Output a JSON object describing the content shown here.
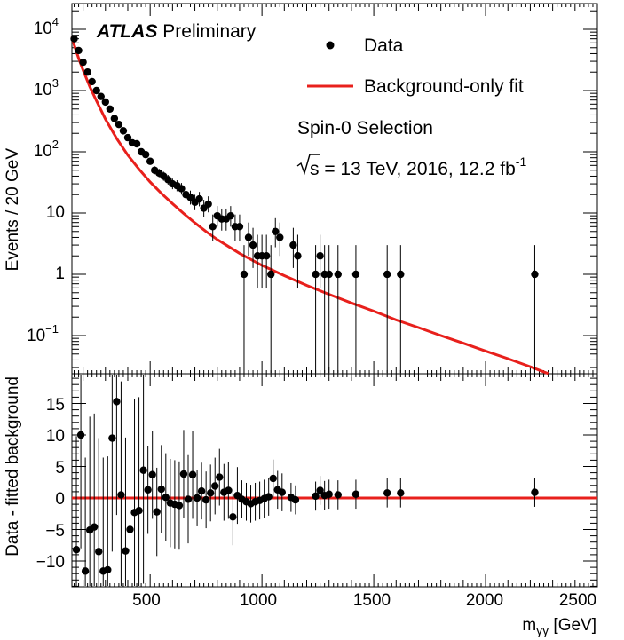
{
  "chart_data": {
    "type": "scatter",
    "experiment": "ATLAS",
    "status": "Preliminary",
    "selection": "Spin-0 Selection",
    "energy_sqrt": "s",
    "energy_text": " = 13 TeV, 2016, 12.2 fb",
    "lumi_exponent": "-1",
    "legend": {
      "data_label": "Data",
      "fit_label": "Background-only fit",
      "position": "top-right"
    },
    "x_axis": {
      "label_base": "m",
      "label_sub": "γγ",
      "label_unit": " [GeV]",
      "range": [
        150,
        2500
      ],
      "tick_labels": [
        "500",
        "1000",
        "1500",
        "2000",
        "2500"
      ]
    },
    "top_panel": {
      "ylabel": "Events / 20 GeV",
      "yscale": "log",
      "ylim": [
        0.02,
        20000
      ],
      "tick_labels": [
        {
          "base": "10",
          "exp": "4"
        },
        {
          "base": "10",
          "exp": "3"
        },
        {
          "base": "10",
          "exp": "2"
        },
        {
          "base": "10",
          "exp": ""
        },
        {
          "base": "1",
          "exp": ""
        },
        {
          "base": "10",
          "exp": "−1"
        }
      ],
      "fit_curve": {
        "x": [
          150,
          160,
          180,
          200,
          230,
          260,
          300,
          350,
          400,
          450,
          500,
          550,
          600,
          650,
          700,
          750,
          800,
          900,
          1000,
          1100,
          1200,
          1300,
          1400,
          1500,
          1600,
          1700,
          1800,
          1900,
          2000,
          2100,
          2200,
          2280
        ],
        "y": [
          7600,
          5600,
          3350,
          2150,
          1150,
          680,
          340,
          165,
          88,
          52,
          32,
          21,
          14.2,
          9.8,
          6.9,
          5.0,
          3.7,
          2.2,
          1.4,
          0.95,
          0.66,
          0.47,
          0.34,
          0.25,
          0.18,
          0.135,
          0.1,
          0.075,
          0.056,
          0.042,
          0.031,
          0.024
        ]
      },
      "series": [
        {
          "name": "Data",
          "x": [
            160,
            180,
            200,
            220,
            240,
            260,
            280,
            300,
            320,
            340,
            360,
            380,
            400,
            420,
            440,
            460,
            480,
            500,
            520,
            540,
            560,
            580,
            600,
            620,
            640,
            660,
            680,
            700,
            720,
            740,
            760,
            780,
            800,
            820,
            840,
            860,
            880,
            900,
            920,
            940,
            960,
            980,
            1000,
            1020,
            1040,
            1060,
            1080,
            1140,
            1160,
            1240,
            1260,
            1280,
            1300,
            1340,
            1420,
            1560,
            1620,
            2220
          ],
          "y": [
            7000,
            4500,
            2900,
            2000,
            1400,
            1000,
            800,
            650,
            500,
            350,
            280,
            220,
            170,
            140,
            135,
            100,
            90,
            70,
            50,
            45,
            40,
            35,
            30,
            28,
            25,
            20,
            18,
            15,
            17,
            12,
            14,
            6,
            9,
            8,
            8,
            9,
            6,
            6,
            1,
            4,
            3,
            2,
            2,
            2,
            1,
            5,
            4,
            3,
            2,
            1,
            2,
            1,
            1,
            1,
            1,
            1,
            1,
            1
          ]
        }
      ]
    },
    "bottom_panel": {
      "ylabel": "Data - fitted background",
      "ylim": [
        -14,
        19
      ],
      "tick_labels": [
        "15",
        "10",
        "5",
        "0",
        "−5",
        "−10"
      ],
      "series": [
        {
          "name": "Data",
          "x": [
            170,
            190,
            210,
            230,
            250,
            270,
            290,
            310,
            330,
            350,
            370,
            390,
            410,
            430,
            450,
            470,
            490,
            510,
            530,
            550,
            570,
            590,
            610,
            630,
            650,
            670,
            690,
            710,
            730,
            750,
            770,
            790,
            810,
            830,
            850,
            870,
            890,
            910,
            930,
            950,
            970,
            990,
            1010,
            1030,
            1050,
            1070,
            1090,
            1130,
            1150,
            1240,
            1260,
            1280,
            1300,
            1340,
            1420,
            1560,
            1620,
            2220
          ],
          "y": [
            -8.2,
            10,
            -11.6,
            -5.1,
            -4.6,
            -8.5,
            -11.6,
            -11.4,
            9.5,
            15.3,
            0.5,
            -8.4,
            -5,
            -2.3,
            -2,
            4.4,
            1.3,
            3.7,
            -2.2,
            1.4,
            0.1,
            -0.8,
            -1,
            -1.2,
            3.8,
            -0.2,
            3.7,
            0,
            1.1,
            -0.3,
            0.8,
            1.9,
            3.3,
            0.9,
            1.2,
            -3,
            0.4,
            -0.2,
            -0.6,
            -0.9,
            -0.6,
            -0.4,
            -0.1,
            0.2,
            3.1,
            1.3,
            0.9,
            0.1,
            -0.3,
            0.3,
            1.2,
            0.4,
            0.6,
            0.5,
            0.6,
            0.8,
            0.8,
            0.9
          ]
        }
      ],
      "fit_line_y": 0
    },
    "colors": {
      "fit": "#e8201c",
      "data": "#000000"
    }
  }
}
